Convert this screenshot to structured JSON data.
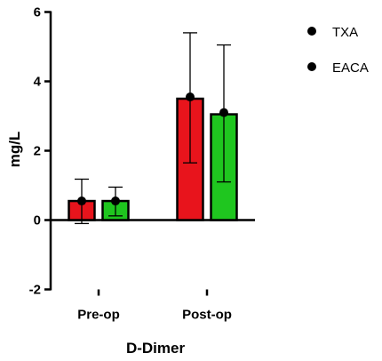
{
  "chart_data": {
    "type": "bar",
    "title": "",
    "xlabel": "D-Dimer",
    "ylabel": "mg/L",
    "ylim": [
      -2,
      6
    ],
    "yticks": [
      "-2",
      "0",
      "2",
      "4",
      "6"
    ],
    "categories": [
      "Pre-op",
      "Post-op"
    ],
    "series": [
      {
        "name": "TXA",
        "color": "#e8141c",
        "values": [
          0.55,
          3.5
        ],
        "error_low": [
          -0.1,
          1.65
        ],
        "error_high": [
          1.18,
          5.4
        ],
        "points": [
          0.55,
          3.55
        ]
      },
      {
        "name": "EACA",
        "color": "#1fc61f",
        "values": [
          0.55,
          3.05
        ],
        "error_low": [
          0.12,
          1.1
        ],
        "error_high": [
          0.95,
          5.05
        ],
        "points": [
          0.55,
          3.1
        ]
      }
    ],
    "legend": {
      "position": "top-right"
    },
    "grid": false
  }
}
